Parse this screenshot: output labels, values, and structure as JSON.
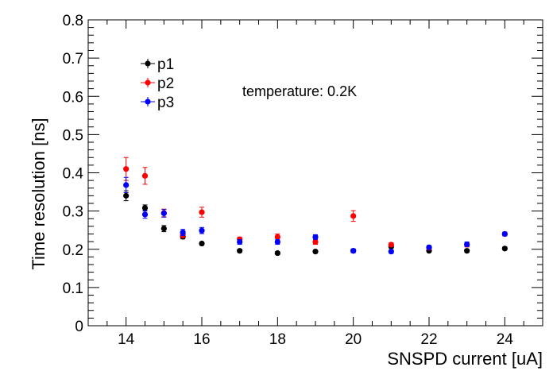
{
  "chart_data": {
    "type": "scatter",
    "title": "",
    "xlabel": "SNSPD current [uA]",
    "ylabel": "Time resolution [ns]",
    "xlim": [
      13,
      25
    ],
    "ylim": [
      0,
      0.8
    ],
    "x_ticks": [
      14,
      16,
      18,
      20,
      22,
      24
    ],
    "y_ticks": [
      0,
      0.1,
      0.2,
      0.3,
      0.4,
      0.5,
      0.6,
      0.7,
      0.8
    ],
    "y_tick_labels": [
      "0",
      "0.1",
      "0.2",
      "0.3",
      "0.4",
      "0.5",
      "0.6",
      "0.7",
      "0.8"
    ],
    "grid": false,
    "legend_position": "top-left",
    "annotation": "temperature: 0.2K",
    "series": [
      {
        "name": "p1",
        "color": "#000000",
        "points": [
          {
            "x": 14,
            "y": 0.34,
            "err": 0.013
          },
          {
            "x": 14.5,
            "y": 0.308,
            "err": 0.008
          },
          {
            "x": 15,
            "y": 0.254,
            "err": 0.008
          },
          {
            "x": 15.5,
            "y": 0.233,
            "err": 0.006
          },
          {
            "x": 16,
            "y": 0.215,
            "err": 0.004
          },
          {
            "x": 17,
            "y": 0.196,
            "err": 0.004
          },
          {
            "x": 18,
            "y": 0.19,
            "err": 0.004
          },
          {
            "x": 19,
            "y": 0.194,
            "err": 0.004
          },
          {
            "x": 20,
            "y": 0.196,
            "err": 0.004
          },
          {
            "x": 21,
            "y": 0.207,
            "err": 0.004
          },
          {
            "x": 22,
            "y": 0.196,
            "err": 0.004
          },
          {
            "x": 23,
            "y": 0.196,
            "err": 0.004
          },
          {
            "x": 24,
            "y": 0.202,
            "err": 0.004
          }
        ]
      },
      {
        "name": "p2",
        "color": "#ff0000",
        "points": [
          {
            "x": 14,
            "y": 0.41,
            "err": 0.03
          },
          {
            "x": 14.5,
            "y": 0.392,
            "err": 0.022
          },
          {
            "x": 15,
            "y": 0.295,
            "err": 0.01
          },
          {
            "x": 15.5,
            "y": 0.238,
            "err": 0.008
          },
          {
            "x": 16,
            "y": 0.297,
            "err": 0.013
          },
          {
            "x": 17,
            "y": 0.226,
            "err": 0.006
          },
          {
            "x": 18,
            "y": 0.232,
            "err": 0.008
          },
          {
            "x": 19,
            "y": 0.219,
            "err": 0.006
          },
          {
            "x": 20,
            "y": 0.287,
            "err": 0.014
          },
          {
            "x": 21,
            "y": 0.212,
            "err": 0.005
          },
          {
            "x": 22,
            "y": 0.204,
            "err": 0.005
          },
          {
            "x": 23,
            "y": 0.212,
            "err": 0.006
          },
          {
            "x": 24,
            "y": 0.24,
            "err": 0.005
          }
        ]
      },
      {
        "name": "p3",
        "color": "#0000ff",
        "points": [
          {
            "x": 14,
            "y": 0.368,
            "err": 0.02
          },
          {
            "x": 14.5,
            "y": 0.291,
            "err": 0.01
          },
          {
            "x": 15,
            "y": 0.294,
            "err": 0.01
          },
          {
            "x": 15.5,
            "y": 0.244,
            "err": 0.008
          },
          {
            "x": 16,
            "y": 0.249,
            "err": 0.008
          },
          {
            "x": 17,
            "y": 0.219,
            "err": 0.006
          },
          {
            "x": 18,
            "y": 0.219,
            "err": 0.006
          },
          {
            "x": 19,
            "y": 0.232,
            "err": 0.006
          },
          {
            "x": 20,
            "y": 0.196,
            "err": 0.005
          },
          {
            "x": 21,
            "y": 0.194,
            "err": 0.005
          },
          {
            "x": 22,
            "y": 0.205,
            "err": 0.005
          },
          {
            "x": 23,
            "y": 0.213,
            "err": 0.006
          },
          {
            "x": 24,
            "y": 0.24,
            "err": 0.005
          }
        ]
      }
    ]
  }
}
